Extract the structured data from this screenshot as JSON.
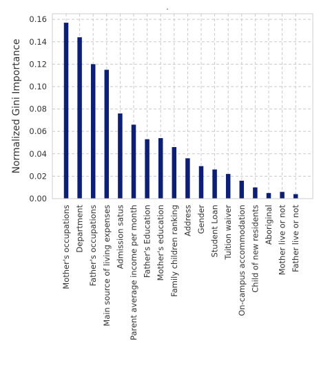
{
  "chart_data": {
    "type": "bar",
    "title": ".",
    "xlabel": "",
    "ylabel": "Normalized Gini Importance",
    "ylim": [
      0,
      0.165
    ],
    "grid": true,
    "legend": "none",
    "bar_color": "#0b1f7a",
    "categories": [
      "Mother's occupations",
      "Department",
      "Father's occupations",
      "Main source of living expenses",
      "Admission satus",
      "Parent average income per month",
      "Father's Education",
      "Mother's education",
      "Family children ranking",
      "Address",
      "Gender",
      "Student Loan",
      "Tuition waiver",
      "On-campus accommodation",
      "Child of new residents",
      "Aboriginal",
      "Mother live or not",
      "Father live or not"
    ],
    "values": [
      0.157,
      0.144,
      0.12,
      0.115,
      0.076,
      0.066,
      0.053,
      0.054,
      0.046,
      0.036,
      0.029,
      0.026,
      0.022,
      0.016,
      0.01,
      0.005,
      0.006,
      0.004
    ],
    "yticks": [
      "0.00",
      "0.02",
      "0.04",
      "0.06",
      "0.08",
      "0.10",
      "0.12",
      "0.14",
      "0.16"
    ]
  }
}
